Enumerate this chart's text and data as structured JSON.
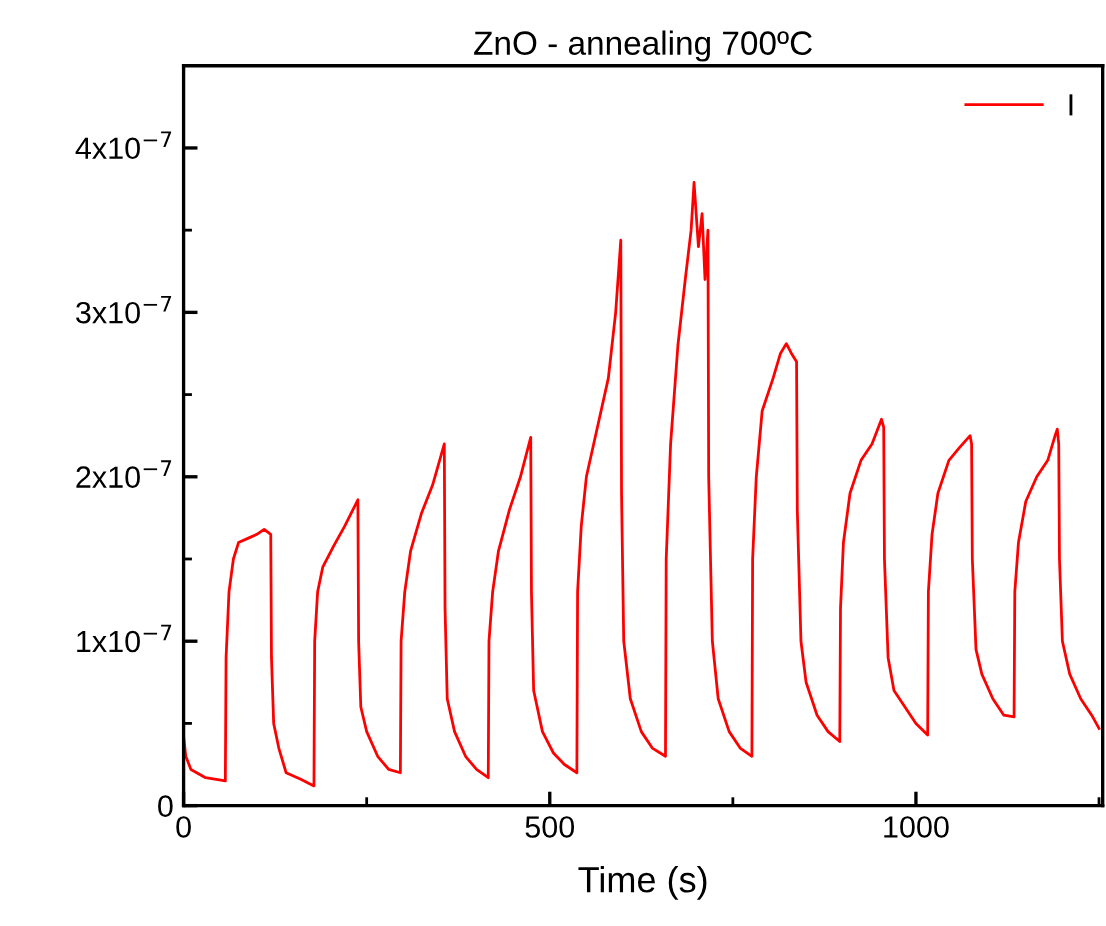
{
  "chart_data": {
    "type": "line",
    "title": "ZnO - annealing 700ºC",
    "xlabel": "Time (s)",
    "xlim": [
      0,
      1255
    ],
    "ylim": [
      0,
      4.5e-07
    ],
    "xticks": [
      0,
      {
        "value": 250,
        "label": null
      },
      500,
      {
        "value": 750,
        "label": null
      },
      1000,
      {
        "value": 1250,
        "label": null
      }
    ],
    "yticks": [
      0,
      {
        "value": 5e-08,
        "label": null
      },
      {
        "value": 1e-07,
        "label": "1x10$^{−7}$"
      },
      {
        "value": 1.5e-07,
        "label": null
      },
      {
        "value": 2e-07,
        "label": "2x10$^{−7}$"
      },
      {
        "value": 2.5e-07,
        "label": null
      },
      {
        "value": 3e-07,
        "label": "3x10$^{−7}$"
      },
      {
        "value": 3.5e-07,
        "label": null
      },
      {
        "value": 4e-07,
        "label": "4x10$^{−7}$"
      }
    ],
    "grid": false,
    "legend": "top right",
    "marker": "none",
    "line_style": "solid",
    "series": [
      {
        "name": "I",
        "color": "#ff0000",
        "x": [
          0,
          3,
          10,
          30,
          57,
          58,
          62,
          68,
          75,
          90,
          100,
          110,
          119,
          120,
          123,
          130,
          140,
          160,
          178,
          179,
          183,
          190,
          205,
          220,
          238,
          239,
          242,
          250,
          265,
          280,
          296,
          297,
          302,
          310,
          325,
          340,
          356,
          357,
          360,
          370,
          385,
          400,
          416,
          417,
          422,
          430,
          445,
          460,
          474,
          475,
          478,
          490,
          505,
          520,
          537,
          538,
          543,
          550,
          565,
          580,
          590,
          597,
          598,
          601,
          610,
          625,
          640,
          658,
          659,
          665,
          675,
          685,
          693,
          697,
          703,
          708,
          712,
          716,
          717,
          722,
          730,
          745,
          760,
          776,
          777,
          782,
          790,
          805,
          815,
          823,
          830,
          837,
          838,
          843,
          850,
          865,
          880,
          896,
          897,
          901,
          910,
          925,
          940,
          953,
          956,
          957,
          962,
          970,
          985,
          1000,
          1016,
          1017,
          1022,
          1030,
          1045,
          1060,
          1074,
          1076,
          1077,
          1082,
          1090,
          1105,
          1120,
          1134,
          1135,
          1140,
          1150,
          1165,
          1180,
          1190,
          1193,
          1195,
          1196,
          1200,
          1210,
          1225,
          1240,
          1250
        ],
        "values": [
          4.2e-08,
          3e-08,
          2.2e-08,
          1.7e-08,
          1.5e-08,
          9e-08,
          1.3e-07,
          1.5e-07,
          1.6e-07,
          1.63e-07,
          1.65e-07,
          1.68e-07,
          1.65e-07,
          9e-08,
          5e-08,
          3.5e-08,
          2e-08,
          1.6e-08,
          1.2e-08,
          1e-07,
          1.3e-07,
          1.45e-07,
          1.58e-07,
          1.7e-07,
          1.86e-07,
          1e-07,
          6e-08,
          4.5e-08,
          3e-08,
          2.2e-08,
          2e-08,
          1e-07,
          1.3e-07,
          1.55e-07,
          1.78e-07,
          1.95e-07,
          2.2e-07,
          1.2e-07,
          6.5e-08,
          4.5e-08,
          3e-08,
          2.2e-08,
          1.7e-08,
          1e-07,
          1.3e-07,
          1.55e-07,
          1.8e-07,
          2e-07,
          2.24e-07,
          1.3e-07,
          7e-08,
          4.5e-08,
          3.2e-08,
          2.5e-08,
          2e-08,
          1.3e-07,
          1.7e-07,
          2e-07,
          2.3e-07,
          2.6e-07,
          3e-07,
          3.44e-07,
          1.9e-07,
          1e-07,
          6.5e-08,
          4.5e-08,
          3.5e-08,
          3e-08,
          1.5e-07,
          2.2e-07,
          2.8e-07,
          3.2e-07,
          3.5e-07,
          3.79e-07,
          3.4e-07,
          3.6e-07,
          3.2e-07,
          3.5e-07,
          2e-07,
          1e-07,
          6.5e-08,
          4.5e-08,
          3.5e-08,
          3e-08,
          1.5e-07,
          2e-07,
          2.4e-07,
          2.6e-07,
          2.75e-07,
          2.81e-07,
          2.75e-07,
          2.7e-07,
          1.8e-07,
          1e-07,
          7.5e-08,
          5.5e-08,
          4.5e-08,
          3.9e-08,
          1.2e-07,
          1.6e-07,
          1.9e-07,
          2.1e-07,
          2.2e-07,
          2.35e-07,
          2.3e-07,
          1.5e-07,
          9e-08,
          7e-08,
          6e-08,
          5e-08,
          4.3e-08,
          1.3e-07,
          1.65e-07,
          1.9e-07,
          2.1e-07,
          2.18e-07,
          2.25e-07,
          2.2e-07,
          1.5e-07,
          9.5e-08,
          8e-08,
          6.5e-08,
          5.5e-08,
          5.4e-08,
          1.3e-07,
          1.6e-07,
          1.85e-07,
          2e-07,
          2.1e-07,
          2.25e-07,
          2.29e-07,
          2.2e-07,
          1.5e-07,
          1e-07,
          8e-08,
          6.5e-08,
          5.5e-08,
          4.7e-08
        ]
      }
    ]
  }
}
